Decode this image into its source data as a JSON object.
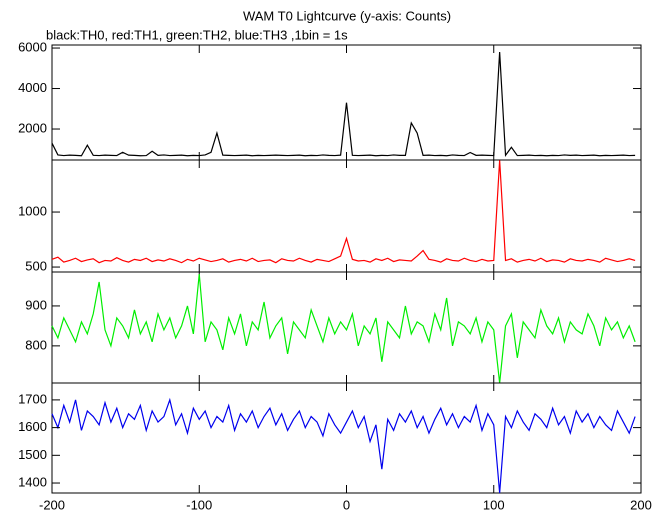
{
  "chart_data": {
    "type": "line",
    "title": "WAM T0 Lightcurve (y-axis: Counts)",
    "subtitle": "black:TH0, red:TH1, green:TH2, blue:TH3 ,1bin = 1s",
    "xlim": [
      -200,
      200
    ],
    "xticks": [
      -200,
      -100,
      0,
      100,
      200
    ],
    "x": [
      -200,
      -196,
      -192,
      -188,
      -184,
      -180,
      -176,
      -172,
      -168,
      -164,
      -160,
      -156,
      -152,
      -148,
      -144,
      -140,
      -136,
      -132,
      -128,
      -124,
      -120,
      -116,
      -112,
      -108,
      -104,
      -100,
      -96,
      -92,
      -88,
      -84,
      -80,
      -76,
      -72,
      -68,
      -64,
      -60,
      -56,
      -52,
      -48,
      -44,
      -40,
      -36,
      -32,
      -28,
      -24,
      -20,
      -16,
      -12,
      -8,
      -4,
      0,
      4,
      8,
      12,
      16,
      20,
      24,
      28,
      32,
      36,
      40,
      44,
      48,
      52,
      56,
      60,
      64,
      68,
      72,
      76,
      80,
      84,
      88,
      92,
      96,
      100,
      104,
      108,
      112,
      116,
      120,
      124,
      128,
      132,
      136,
      140,
      144,
      148,
      152,
      156,
      160,
      164,
      168,
      172,
      176,
      180,
      184,
      188,
      192,
      196
    ],
    "panels": [
      {
        "color": "#000000",
        "ylim": [
          470,
          6150
        ],
        "yticks": [
          2000,
          4000,
          6000
        ],
        "values": [
          1300,
          720,
          690,
          710,
          700,
          680,
          1200,
          700,
          690,
          710,
          700,
          690,
          850,
          710,
          700,
          680,
          690,
          900,
          700,
          720,
          690,
          700,
          710,
          680,
          700,
          690,
          720,
          850,
          1800,
          710,
          700,
          690,
          700,
          710,
          680,
          700,
          690,
          700,
          710,
          700,
          690,
          700,
          710,
          680,
          700,
          690,
          720,
          700,
          690,
          710,
          3300,
          700,
          690,
          700,
          710,
          680,
          700,
          690,
          720,
          700,
          700,
          2300,
          1800,
          700,
          710,
          690,
          700,
          680,
          720,
          700,
          690,
          840,
          700,
          710,
          700,
          690,
          5800,
          700,
          1100,
          690,
          700,
          710,
          690,
          700,
          680,
          700,
          690,
          720,
          700,
          710,
          690,
          700,
          710,
          680,
          700,
          690,
          700,
          710,
          690,
          700
        ]
      },
      {
        "color": "#ff0000",
        "ylim": [
          455,
          1473
        ],
        "yticks": [
          500,
          1000
        ],
        "values": [
          570,
          590,
          545,
          560,
          580,
          550,
          565,
          575,
          540,
          560,
          555,
          585,
          560,
          545,
          570,
          560,
          580,
          550,
          565,
          555,
          575,
          560,
          540,
          570,
          555,
          580,
          565,
          550,
          560,
          575,
          545,
          560,
          570,
          555,
          580,
          550,
          560,
          565,
          540,
          575,
          560,
          555,
          580,
          560,
          545,
          570,
          560,
          550,
          575,
          600,
          760,
          570,
          555,
          560,
          545,
          575,
          560,
          580,
          550,
          565,
          560,
          555,
          600,
          650,
          570,
          560,
          545,
          575,
          560,
          555,
          580,
          560,
          550,
          570,
          555,
          560,
          1470,
          560,
          575,
          545,
          560,
          570,
          555,
          580,
          550,
          565,
          560,
          545,
          575,
          560,
          555,
          570,
          560,
          545,
          580,
          565,
          550,
          560,
          575,
          560
        ]
      },
      {
        "color": "#00ee00",
        "ylim": [
          707,
          985
        ],
        "yticks": [
          800,
          900
        ],
        "values": [
          850,
          820,
          870,
          840,
          810,
          860,
          830,
          880,
          960,
          840,
          800,
          870,
          850,
          820,
          890,
          830,
          860,
          810,
          880,
          840,
          870,
          820,
          850,
          900,
          830,
          980,
          810,
          860,
          840,
          790,
          870,
          830,
          880,
          800,
          860,
          840,
          910,
          820,
          850,
          870,
          780,
          860,
          840,
          820,
          890,
          850,
          810,
          870,
          830,
          860,
          840,
          880,
          800,
          850,
          830,
          870,
          760,
          860,
          840,
          820,
          900,
          830,
          860,
          850,
          810,
          880,
          840,
          920,
          800,
          860,
          850,
          830,
          870,
          810,
          860,
          840,
          707,
          850,
          880,
          770,
          860,
          840,
          820,
          890,
          850,
          830,
          870,
          810,
          860,
          840,
          830,
          880,
          850,
          800,
          870,
          840,
          860,
          820,
          850,
          810
        ]
      },
      {
        "color": "#0000ee",
        "ylim": [
          1364,
          1761
        ],
        "yticks": [
          1400,
          1500,
          1600,
          1700
        ],
        "values": [
          1650,
          1600,
          1680,
          1620,
          1700,
          1590,
          1660,
          1640,
          1610,
          1690,
          1620,
          1670,
          1600,
          1650,
          1630,
          1680,
          1590,
          1660,
          1620,
          1640,
          1700,
          1610,
          1650,
          1580,
          1670,
          1630,
          1660,
          1600,
          1640,
          1620,
          1680,
          1590,
          1650,
          1620,
          1660,
          1600,
          1640,
          1670,
          1610,
          1650,
          1590,
          1630,
          1660,
          1600,
          1640,
          1620,
          1570,
          1650,
          1610,
          1580,
          1620,
          1660,
          1600,
          1640,
          1550,
          1610,
          1450,
          1630,
          1590,
          1650,
          1620,
          1660,
          1600,
          1640,
          1580,
          1630,
          1670,
          1610,
          1650,
          1600,
          1640,
          1620,
          1680,
          1590,
          1650,
          1610,
          1364,
          1640,
          1600,
          1660,
          1620,
          1590,
          1650,
          1630,
          1600,
          1670,
          1610,
          1640,
          1580,
          1660,
          1620,
          1650,
          1600,
          1640,
          1610,
          1590,
          1660,
          1620,
          1580,
          1640
        ]
      }
    ]
  }
}
